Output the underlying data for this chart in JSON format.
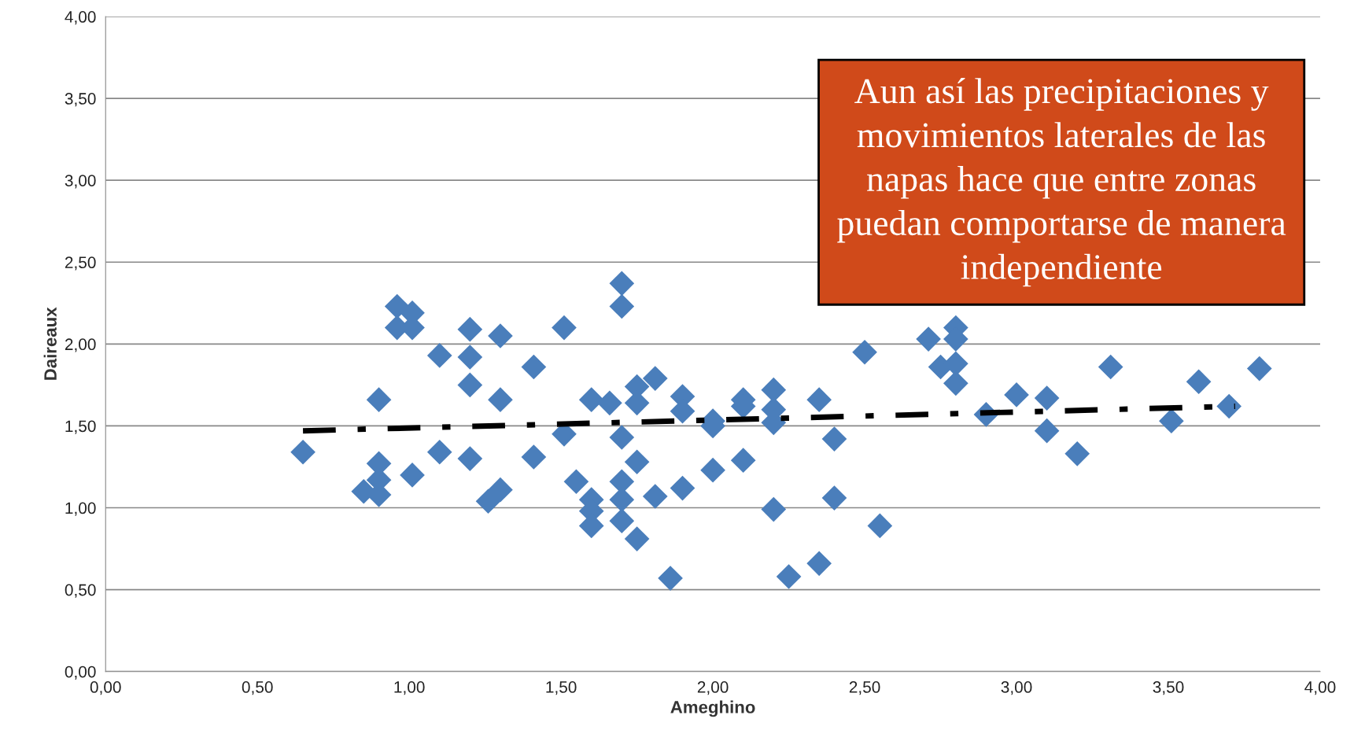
{
  "chart_data": {
    "type": "scatter",
    "xlabel": "Ameghino",
    "ylabel": "Daireaux",
    "annotations": [
      "Aun así las precipitaciones y\nmovimientos laterales de las\nnapas hace que entre zonas\npuedan comportarse de manera\nindependiente"
    ],
    "xlim": [
      0,
      4
    ],
    "ylim": [
      0,
      4
    ],
    "xticks": [
      {
        "value": 0,
        "label": "0,00"
      },
      {
        "value": 0.5,
        "label": "0,50"
      },
      {
        "value": 1,
        "label": "1,00"
      },
      {
        "value": 1.5,
        "label": "1,50"
      },
      {
        "value": 2,
        "label": "2,00"
      },
      {
        "value": 2.5,
        "label": "2,50"
      },
      {
        "value": 3,
        "label": "3,00"
      },
      {
        "value": 3.5,
        "label": "3,50"
      },
      {
        "value": 4,
        "label": "4,00"
      }
    ],
    "yticks": [
      {
        "value": 0,
        "label": "0,00"
      },
      {
        "value": 0.5,
        "label": "0,50"
      },
      {
        "value": 1,
        "label": "1,00"
      },
      {
        "value": 1.5,
        "label": "1,50"
      },
      {
        "value": 2,
        "label": "2,00"
      },
      {
        "value": 2.5,
        "label": "2,50"
      },
      {
        "value": 3,
        "label": "3,00"
      },
      {
        "value": 3.5,
        "label": "3,50"
      },
      {
        "value": 4,
        "label": "4,00"
      }
    ],
    "grid": "y",
    "marker": "diamond",
    "series": [
      {
        "type": "scatter",
        "color": "#4a7ebb",
        "x": [
          0.65,
          0.85,
          0.9,
          0.9,
          0.9,
          0.9,
          0.96,
          0.96,
          1.01,
          1.01,
          1.01,
          1.1,
          1.1,
          1.2,
          1.2,
          1.2,
          1.2,
          1.26,
          1.3,
          1.3,
          1.3,
          1.41,
          1.41,
          1.51,
          1.51,
          1.55,
          1.6,
          1.6,
          1.6,
          1.6,
          1.66,
          1.7,
          1.7,
          1.7,
          1.7,
          1.7,
          1.7,
          1.75,
          1.75,
          1.75,
          1.75,
          1.81,
          1.81,
          1.86,
          1.9,
          1.9,
          1.9,
          2.0,
          2.0,
          2.0,
          2.1,
          2.1,
          2.1,
          2.2,
          2.2,
          2.2,
          2.2,
          2.25,
          2.35,
          2.35,
          2.4,
          2.4,
          2.5,
          2.55,
          2.71,
          2.75,
          2.8,
          2.8,
          2.8,
          2.8,
          2.9,
          3.0,
          3.1,
          3.1,
          3.2,
          3.31,
          3.51,
          3.6,
          3.7,
          3.8
        ],
        "values": [
          1.34,
          1.1,
          1.08,
          1.17,
          1.27,
          1.66,
          2.23,
          2.1,
          2.19,
          2.1,
          1.2,
          1.93,
          1.34,
          2.09,
          1.92,
          1.75,
          1.3,
          1.04,
          1.11,
          2.05,
          1.66,
          1.86,
          1.31,
          2.1,
          1.45,
          1.16,
          1.66,
          1.05,
          0.98,
          0.89,
          1.64,
          2.37,
          2.23,
          1.43,
          1.16,
          1.05,
          0.92,
          1.74,
          1.64,
          1.28,
          0.81,
          1.79,
          1.07,
          0.57,
          1.68,
          1.59,
          1.12,
          1.53,
          1.5,
          1.23,
          1.66,
          1.62,
          1.29,
          1.72,
          1.6,
          1.52,
          0.99,
          0.58,
          1.66,
          0.66,
          1.42,
          1.06,
          1.95,
          0.89,
          2.03,
          1.86,
          2.1,
          2.03,
          1.88,
          1.76,
          1.57,
          1.69,
          1.67,
          1.47,
          1.33,
          1.86,
          1.53,
          1.77,
          1.62,
          1.85
        ]
      },
      {
        "type": "line",
        "color": "#000000",
        "line_style": "dashdot",
        "marker": "none",
        "x": [
          0.65,
          3.72
        ],
        "values": [
          1.47,
          1.62
        ]
      }
    ]
  }
}
